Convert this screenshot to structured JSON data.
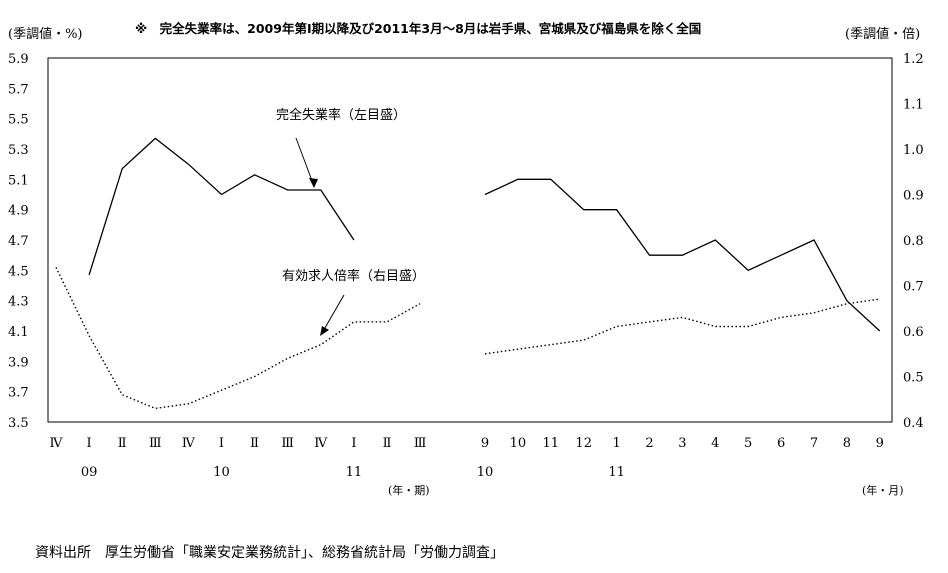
{
  "chart_data": {
    "type": "line",
    "note": "※　完全失業率は、2009年第Ⅰ期以降及び2011年3月～8月は岩手県、宮城県及び福島県を除く全国",
    "left_axis_unit": "(季調値・%)",
    "right_axis_unit": "(季調値・倍)",
    "source": "資料出所　厚生労働省「職業安定業務統計」、総務省統計局「労働力調査」",
    "left_axis": {
      "ticks": [
        "5.9",
        "5.7",
        "5.5",
        "5.3",
        "5.1",
        "4.9",
        "4.7",
        "4.5",
        "4.3",
        "4.1",
        "3.9",
        "3.7",
        "3.5"
      ],
      "ylim": [
        3.5,
        5.9
      ]
    },
    "right_axis": {
      "ticks": [
        "1.2",
        "1.1",
        "1.0",
        "0.9",
        "0.8",
        "0.7",
        "0.6",
        "0.5",
        "0.4"
      ],
      "ylim": [
        0.4,
        1.2
      ]
    },
    "panels": [
      {
        "categories": [
          "Ⅳ",
          "Ⅰ",
          "Ⅱ",
          "Ⅲ",
          "Ⅳ",
          "Ⅰ",
          "Ⅱ",
          "Ⅲ",
          "Ⅳ",
          "Ⅰ",
          "Ⅱ",
          "Ⅲ"
        ],
        "year_labels": [
          {
            "label": "09",
            "index": 1
          },
          {
            "label": "10",
            "index": 5
          },
          {
            "label": "11",
            "index": 9
          }
        ],
        "axis_unit": "(年・期)",
        "series": [
          {
            "name": "完全失業率(左目盛)",
            "axis": "left",
            "style": "solid",
            "values": [
              null,
              4.47,
              5.17,
              5.37,
              5.2,
              5.0,
              5.13,
              5.03,
              5.03,
              4.7,
              null,
              null
            ]
          },
          {
            "name": "有効求人倍率(右目盛)",
            "axis": "right",
            "style": "dotted",
            "values": [
              0.74,
              0.59,
              0.46,
              0.43,
              0.44,
              0.47,
              0.5,
              0.54,
              0.57,
              0.62,
              0.62,
              0.66
            ]
          }
        ]
      },
      {
        "categories": [
          "9",
          "10",
          "11",
          "12",
          "1",
          "2",
          "3",
          "4",
          "5",
          "6",
          "7",
          "8",
          "9"
        ],
        "year_labels": [
          {
            "label": "10",
            "index": 0
          },
          {
            "label": "11",
            "index": 4
          }
        ],
        "axis_unit": "(年・月)",
        "series": [
          {
            "name": "完全失業率(左目盛)",
            "axis": "left",
            "style": "solid",
            "values": [
              5.0,
              5.1,
              5.1,
              4.9,
              4.9,
              4.6,
              4.6,
              4.7,
              4.5,
              4.6,
              4.7,
              4.3,
              4.1
            ]
          },
          {
            "name": "有効求人倍率(右目盛)",
            "axis": "right",
            "style": "dotted",
            "values": [
              0.55,
              0.56,
              0.57,
              0.58,
              0.61,
              0.62,
              0.63,
              0.61,
              0.61,
              0.63,
              0.64,
              0.66,
              0.67
            ]
          }
        ]
      }
    ],
    "annotations": [
      {
        "text": "完全失業率（左目盛）",
        "series": "完全失業率(左目盛)"
      },
      {
        "text": "有効求人倍率（右目盛）",
        "series": "有効求人倍率(右目盛)"
      }
    ]
  }
}
